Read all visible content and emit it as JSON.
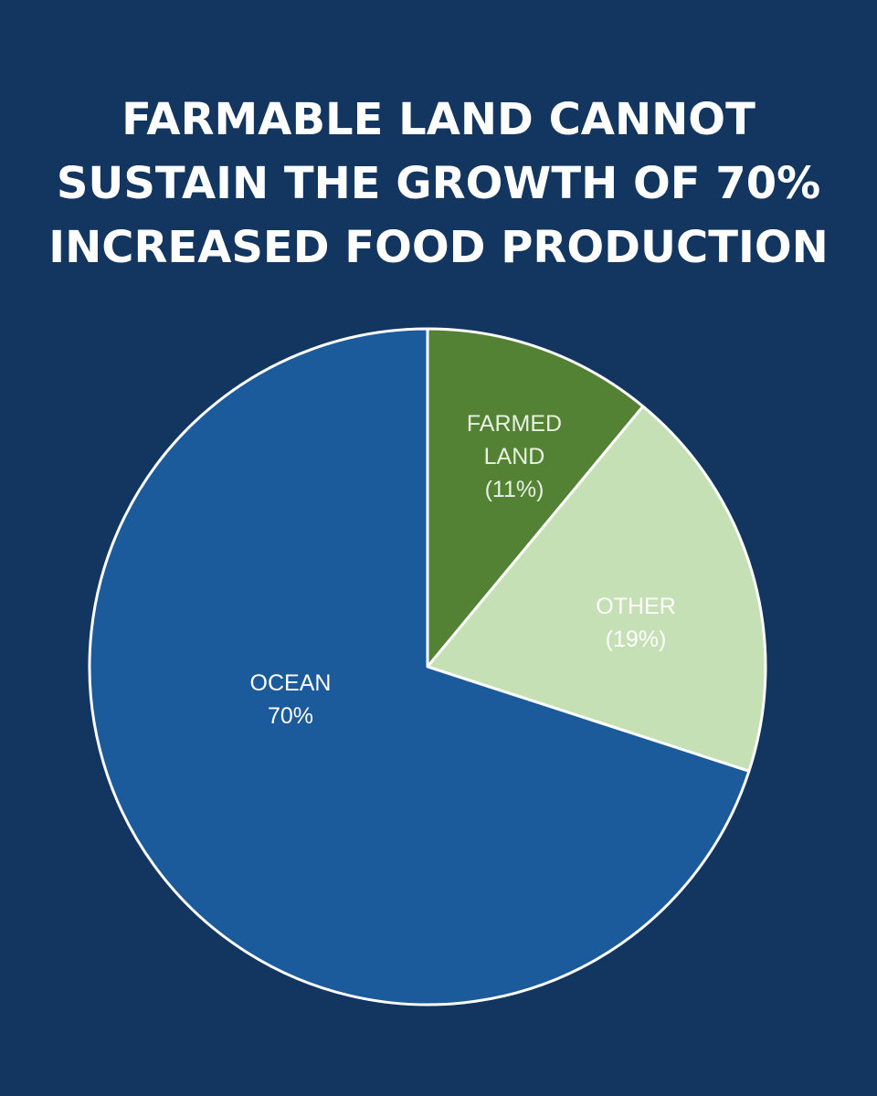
{
  "title_lines": [
    "FARMABLE LAND CANNOT",
    "SUSTAIN THE GROWTH OF 70%",
    "INCREASED FOOD PRODUCTION"
  ],
  "colors": {
    "background": "#12365f",
    "title": "#ffffff",
    "slice_border": "#ffffff"
  },
  "chart_data": {
    "type": "pie",
    "title": "FARMABLE LAND CANNOT SUSTAIN THE GROWTH OF 70% INCREASED FOOD PRODUCTION",
    "start_angle_deg": 0,
    "direction": "clockwise",
    "slices": [
      {
        "key": "farmed-land",
        "category": "FARMED LAND",
        "value": 11,
        "label_lines": [
          "FARMED",
          "LAND",
          "(11%)"
        ],
        "color": "#548235",
        "label_color": "#e8f0e0"
      },
      {
        "key": "other",
        "category": "OTHER",
        "value": 19,
        "label_lines": [
          "OTHER",
          "(19%)"
        ],
        "color": "#c5e0b4",
        "label_color": "#ffffff"
      },
      {
        "key": "ocean",
        "category": "OCEAN",
        "value": 70,
        "label_lines": [
          "OCEAN",
          "70%"
        ],
        "color": "#1b5a9b",
        "label_color": "#ffffff"
      }
    ]
  }
}
